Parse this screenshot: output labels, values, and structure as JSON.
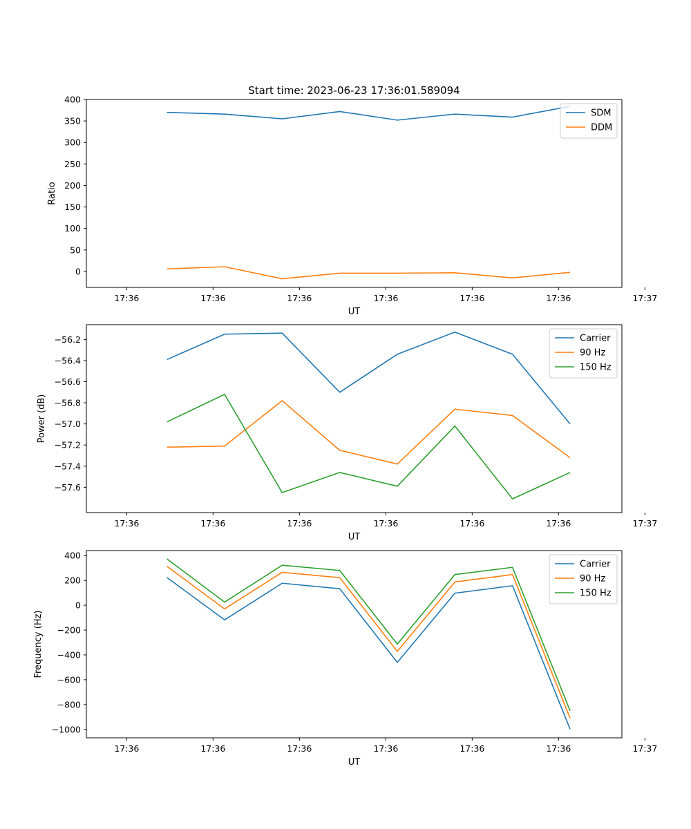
{
  "figure": {
    "title": "Start time: 2023-06-23 17:36:01.589094"
  },
  "colors": {
    "blue": "#1f77b4",
    "orange": "#ff7f0e",
    "green": "#2ca02c",
    "axis": "#000000",
    "legend_border": "#cccccc"
  },
  "chart_data": [
    {
      "type": "line",
      "title": "Start time: 2023-06-23 17:36:01.589094",
      "xlabel": "UT",
      "ylabel": "Ratio",
      "xlim": [
        -0.7,
        8.6
      ],
      "ylim": [
        -37,
        400
      ],
      "x_ticks": [
        0,
        1.5,
        3,
        4.5,
        6,
        7.5,
        9
      ],
      "x_tick_labels": [
        "17:36",
        "17:36",
        "17:36",
        "17:36",
        "17:36",
        "17:36",
        "17:37"
      ],
      "y_ticks": [
        0,
        50,
        100,
        150,
        200,
        250,
        300,
        350,
        400
      ],
      "y_tick_labels": [
        "0",
        "50",
        "100",
        "150",
        "200",
        "250",
        "300",
        "350",
        "400"
      ],
      "legend_position": "top-right",
      "x": [
        0.7,
        1.7,
        2.7,
        3.7,
        4.7,
        5.7,
        6.7,
        7.7
      ],
      "series": [
        {
          "name": "SDM",
          "color": "#1f77b4",
          "values": [
            370,
            366,
            355,
            372,
            352,
            366,
            359,
            384
          ]
        },
        {
          "name": "DDM",
          "color": "#ff7f0e",
          "values": [
            6,
            11,
            -17,
            -4,
            -4,
            -3,
            -15,
            -2
          ]
        }
      ]
    },
    {
      "type": "line",
      "title": "",
      "xlabel": "UT",
      "ylabel": "Power (dB)",
      "xlim": [
        -0.7,
        8.6
      ],
      "ylim": [
        -57.84,
        -56.06
      ],
      "x_ticks": [
        0,
        1.5,
        3,
        4.5,
        6,
        7.5,
        9
      ],
      "x_tick_labels": [
        "17:36",
        "17:36",
        "17:36",
        "17:36",
        "17:36",
        "17:36",
        "17:37"
      ],
      "y_ticks": [
        -57.6,
        -57.4,
        -57.2,
        -57.0,
        -56.8,
        -56.6,
        -56.4,
        -56.2
      ],
      "y_tick_labels": [
        "−57.6",
        "−57.4",
        "−57.2",
        "−57.0",
        "−56.8",
        "−56.6",
        "−56.4",
        "−56.2"
      ],
      "legend_position": "top-right",
      "x": [
        0.7,
        1.7,
        2.7,
        3.7,
        4.7,
        5.7,
        6.7,
        7.7
      ],
      "series": [
        {
          "name": "Carrier",
          "color": "#1f77b4",
          "values": [
            -56.39,
            -56.15,
            -56.14,
            -56.7,
            -56.34,
            -56.13,
            -56.34,
            -57.0
          ]
        },
        {
          "name": "90 Hz",
          "color": "#ff7f0e",
          "values": [
            -57.22,
            -57.21,
            -56.78,
            -57.25,
            -57.38,
            -56.86,
            -56.92,
            -57.32
          ]
        },
        {
          "name": "150 Hz",
          "color": "#2ca02c",
          "values": [
            -56.98,
            -56.72,
            -57.65,
            -57.46,
            -57.59,
            -57.02,
            -57.71,
            -57.46
          ]
        }
      ]
    },
    {
      "type": "line",
      "title": "",
      "xlabel": "UT",
      "ylabel": "Frequency (Hz)",
      "xlim": [
        -0.7,
        8.6
      ],
      "ylim": [
        -1068,
        440
      ],
      "x_ticks": [
        0,
        1.5,
        3,
        4.5,
        6,
        7.5,
        9
      ],
      "x_tick_labels": [
        "17:36",
        "17:36",
        "17:36",
        "17:36",
        "17:36",
        "17:36",
        "17:37"
      ],
      "y_ticks": [
        -1000,
        -800,
        -600,
        -400,
        -200,
        0,
        200,
        400
      ],
      "y_tick_labels": [
        "−1000",
        "−800",
        "−600",
        "−400",
        "−200",
        "0",
        "200",
        "400"
      ],
      "legend_position": "top-right",
      "x": [
        0.7,
        1.7,
        2.7,
        3.7,
        4.7,
        5.7,
        6.7,
        7.7
      ],
      "series": [
        {
          "name": "Carrier",
          "color": "#1f77b4",
          "values": [
            223,
            -118,
            177,
            133,
            -461,
            97,
            157,
            -998
          ]
        },
        {
          "name": "90 Hz",
          "color": "#ff7f0e",
          "values": [
            313,
            -30,
            265,
            222,
            -372,
            187,
            247,
            -910
          ]
        },
        {
          "name": "150 Hz",
          "color": "#2ca02c",
          "values": [
            373,
            25,
            322,
            280,
            -313,
            247,
            305,
            -850
          ]
        }
      ]
    }
  ]
}
